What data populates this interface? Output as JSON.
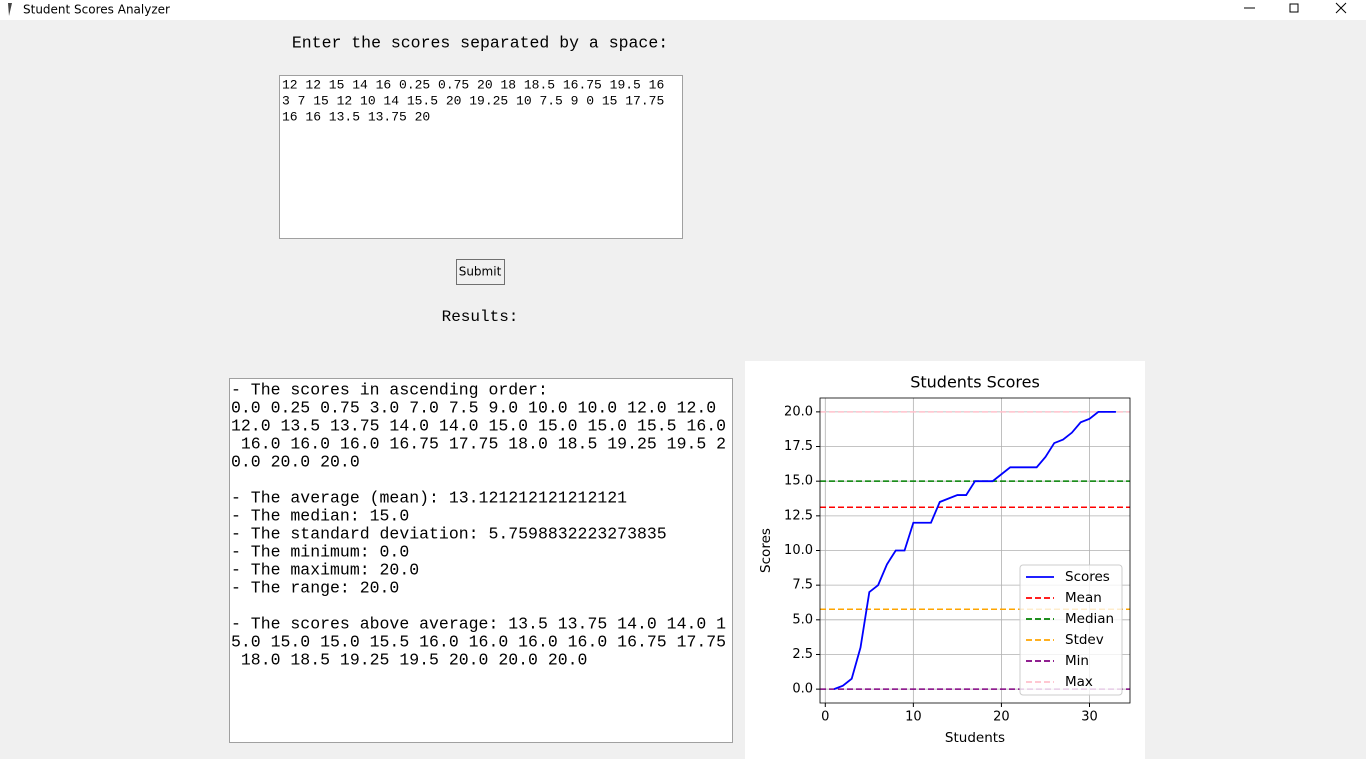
{
  "window": {
    "title": "Student Scores Analyzer"
  },
  "prompt": "Enter the scores separated by a space:",
  "input": {
    "lines": [
      "12 12 15 14 16 0.25 0.75 20 18 18.5 16.75 19.5 16",
      "3 7 15 12 10 14 15.5 20 19.25 10 7.5 9 0 15 17.75",
      "16 16 13.5 13.75 20"
    ]
  },
  "submit": "Submit",
  "results_label": "Results:",
  "results": {
    "lines": [
      "- The scores in ascending order:",
      "0.0 0.25 0.75 3.0 7.0 7.5 9.0 10.0 10.0 12.0 12.0",
      "12.0 13.5 13.75 14.0 14.0 15.0 15.0 15.0 15.5 16.0",
      " 16.0 16.0 16.0 16.75 17.75 18.0 18.5 19.25 19.5 2",
      "0.0 20.0 20.0",
      "",
      "- The average (mean): 13.121212121212121",
      "- The median: 15.0",
      "- The standard deviation: 5.7598832223273835",
      "- The minimum: 0.0",
      "- The maximum: 20.0",
      "- The range: 20.0",
      "",
      "- The scores above average: 13.5 13.75 14.0 14.0 1",
      "5.0 15.0 15.0 15.5 16.0 16.0 16.0 16.0 16.75 17.75",
      " 18.0 18.5 19.25 19.5 20.0 20.0 20.0"
    ]
  },
  "chart_data": {
    "type": "line",
    "title": "Students Scores",
    "x_label": "Students",
    "y_label": "Scores",
    "series": [
      {
        "name": "Scores",
        "color": "#0000ff",
        "x": [
          1,
          2,
          3,
          4,
          5,
          6,
          7,
          8,
          9,
          10,
          11,
          12,
          13,
          14,
          15,
          16,
          17,
          18,
          19,
          20,
          21,
          22,
          23,
          24,
          25,
          26,
          27,
          28,
          29,
          30,
          31,
          32,
          33
        ],
        "values": [
          0.0,
          0.25,
          0.75,
          3.0,
          7.0,
          7.5,
          9.0,
          10.0,
          10.0,
          12.0,
          12.0,
          12.0,
          13.5,
          13.75,
          14.0,
          14.0,
          15.0,
          15.0,
          15.0,
          15.5,
          16.0,
          16.0,
          16.0,
          16.0,
          16.75,
          17.75,
          18.0,
          18.5,
          19.25,
          19.5,
          20.0,
          20.0,
          20.0
        ]
      }
    ],
    "hlines": [
      {
        "name": "Mean",
        "color": "#ff0000",
        "value": 13.121212121212121
      },
      {
        "name": "Median",
        "color": "#008000",
        "value": 15.0
      },
      {
        "name": "Stdev",
        "color": "#ffa500",
        "value": 5.7598832223273835
      },
      {
        "name": "Min",
        "color": "#800080",
        "value": 0.0
      },
      {
        "name": "Max",
        "color": "#ffc0cb",
        "value": 20.0
      }
    ],
    "xlim": [
      -0.6,
      34.6
    ],
    "ylim": [
      -1,
      21
    ],
    "xticks": [
      0,
      10,
      20,
      30
    ],
    "yticks": [
      {
        "value": 0,
        "label": "0.0"
      },
      {
        "value": 2.5,
        "label": "2.5"
      },
      {
        "value": 5,
        "label": "5.0"
      },
      {
        "value": 7.5,
        "label": "7.5"
      },
      {
        "value": 10,
        "label": "10.0"
      },
      {
        "value": 12.5,
        "label": "12.5"
      },
      {
        "value": 15,
        "label": "15.0"
      },
      {
        "value": 17.5,
        "label": "17.5"
      },
      {
        "value": 20,
        "label": "20.0"
      }
    ],
    "grid": true,
    "legend": "lower right"
  }
}
